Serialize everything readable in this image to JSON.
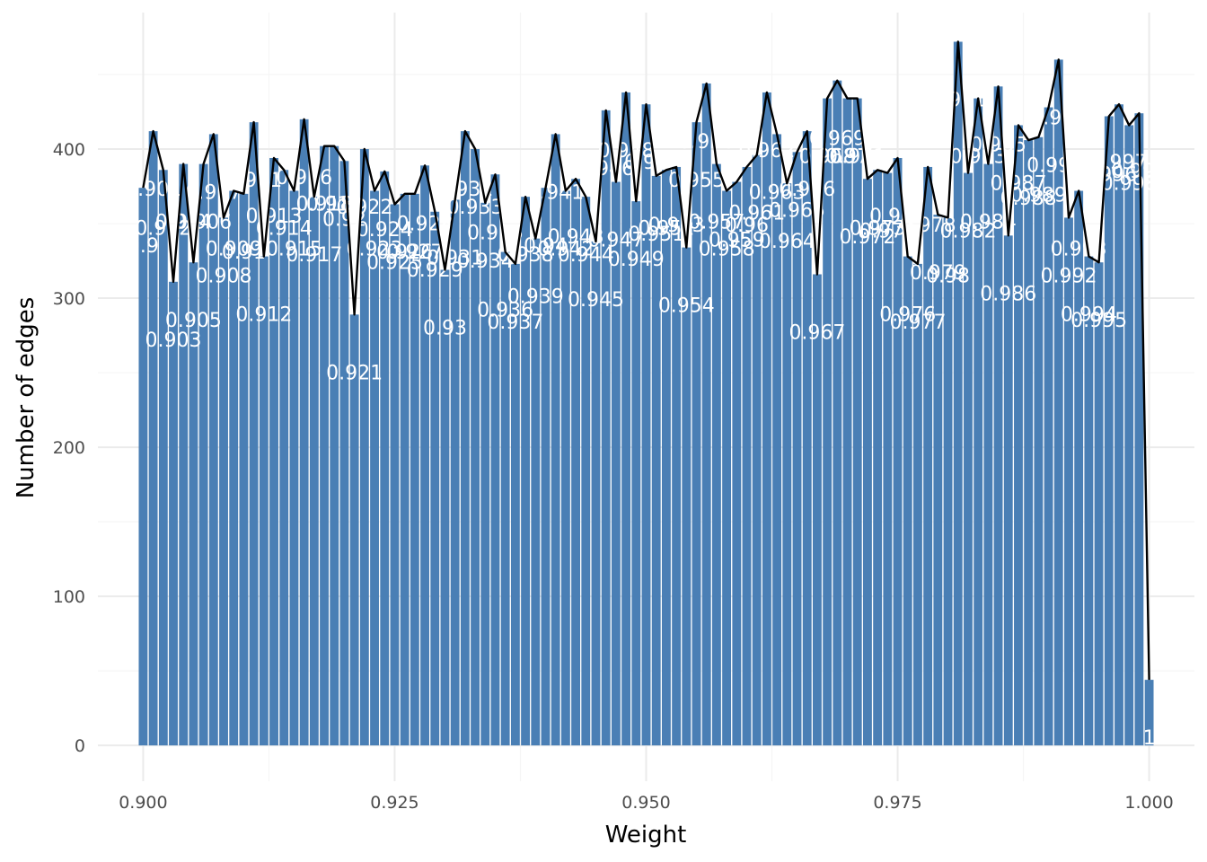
{
  "chart_data": {
    "type": "bar",
    "xlabel": "Weight",
    "ylabel": "Number of edges",
    "xlim": [
      0.8955,
      1.0045
    ],
    "ylim": [
      -24,
      500
    ],
    "x_ticks": [
      "0.900",
      "0.925",
      "0.950",
      "0.975",
      "1.000"
    ],
    "y_ticks": [
      "0",
      "100",
      "200",
      "300",
      "400"
    ],
    "grid": true,
    "legend": "none",
    "bar_color": "#4a7fb5",
    "line_color": "#000000",
    "label_color": "#ffffff",
    "series": [
      {
        "x": 0.9,
        "y": 374,
        "label": "0.9"
      },
      {
        "x": 0.901,
        "y": 412,
        "label": "0.901"
      },
      {
        "x": 0.902,
        "y": 386,
        "label": "0.902"
      },
      {
        "x": 0.903,
        "y": 311,
        "label": "0.903"
      },
      {
        "x": 0.904,
        "y": 390,
        "label": "0.904"
      },
      {
        "x": 0.905,
        "y": 324,
        "label": "0.905"
      },
      {
        "x": 0.906,
        "y": 390,
        "label": "0.906"
      },
      {
        "x": 0.907,
        "y": 410,
        "label": "0.907"
      },
      {
        "x": 0.908,
        "y": 354,
        "label": "0.908"
      },
      {
        "x": 0.909,
        "y": 372,
        "label": "0.909"
      },
      {
        "x": 0.91,
        "y": 370,
        "label": "0.91"
      },
      {
        "x": 0.911,
        "y": 418,
        "label": "0.911"
      },
      {
        "x": 0.912,
        "y": 328,
        "label": "0.912"
      },
      {
        "x": 0.913,
        "y": 394,
        "label": "0.913"
      },
      {
        "x": 0.914,
        "y": 386,
        "label": "0.914"
      },
      {
        "x": 0.915,
        "y": 372,
        "label": "0.915"
      },
      {
        "x": 0.916,
        "y": 420,
        "label": "0.916"
      },
      {
        "x": 0.917,
        "y": 368,
        "label": "0.917"
      },
      {
        "x": 0.918,
        "y": 402,
        "label": "0.918"
      },
      {
        "x": 0.919,
        "y": 402,
        "label": "0.919"
      },
      {
        "x": 0.92,
        "y": 392,
        "label": "0.92"
      },
      {
        "x": 0.921,
        "y": 289,
        "label": "0.921"
      },
      {
        "x": 0.922,
        "y": 400,
        "label": "0.922"
      },
      {
        "x": 0.923,
        "y": 372,
        "label": "0.923"
      },
      {
        "x": 0.924,
        "y": 385,
        "label": "0.924"
      },
      {
        "x": 0.925,
        "y": 363,
        "label": "0.925"
      },
      {
        "x": 0.926,
        "y": 370,
        "label": "0.926"
      },
      {
        "x": 0.927,
        "y": 370,
        "label": "0.927"
      },
      {
        "x": 0.928,
        "y": 389,
        "label": "0.928"
      },
      {
        "x": 0.929,
        "y": 358,
        "label": "0.929"
      },
      {
        "x": 0.93,
        "y": 319,
        "label": "0.93"
      },
      {
        "x": 0.931,
        "y": 366,
        "label": "0.931"
      },
      {
        "x": 0.932,
        "y": 412,
        "label": "0.932"
      },
      {
        "x": 0.933,
        "y": 400,
        "label": "0.933"
      },
      {
        "x": 0.934,
        "y": 364,
        "label": "0.934"
      },
      {
        "x": 0.935,
        "y": 383,
        "label": "0.935"
      },
      {
        "x": 0.936,
        "y": 331,
        "label": "0.936"
      },
      {
        "x": 0.937,
        "y": 323,
        "label": "0.937"
      },
      {
        "x": 0.938,
        "y": 368,
        "label": "0.938"
      },
      {
        "x": 0.939,
        "y": 340,
        "label": "0.939"
      },
      {
        "x": 0.94,
        "y": 374,
        "label": "0.94"
      },
      {
        "x": 0.941,
        "y": 410,
        "label": "0.941"
      },
      {
        "x": 0.942,
        "y": 372,
        "label": "0.942"
      },
      {
        "x": 0.943,
        "y": 380,
        "label": "0.943"
      },
      {
        "x": 0.944,
        "y": 368,
        "label": "0.944"
      },
      {
        "x": 0.945,
        "y": 338,
        "label": "0.945"
      },
      {
        "x": 0.946,
        "y": 426,
        "label": "0.946"
      },
      {
        "x": 0.947,
        "y": 378,
        "label": "0.947"
      },
      {
        "x": 0.948,
        "y": 438,
        "label": "0.948"
      },
      {
        "x": 0.949,
        "y": 365,
        "label": "0.949"
      },
      {
        "x": 0.95,
        "y": 430,
        "label": "0.95"
      },
      {
        "x": 0.951,
        "y": 382,
        "label": "0.951"
      },
      {
        "x": 0.952,
        "y": 386,
        "label": "0.952"
      },
      {
        "x": 0.953,
        "y": 388,
        "label": "0.953"
      },
      {
        "x": 0.954,
        "y": 334,
        "label": "0.954"
      },
      {
        "x": 0.955,
        "y": 418,
        "label": "0.955"
      },
      {
        "x": 0.956,
        "y": 444,
        "label": "0.956"
      },
      {
        "x": 0.957,
        "y": 390,
        "label": "0.957"
      },
      {
        "x": 0.958,
        "y": 372,
        "label": "0.958"
      },
      {
        "x": 0.959,
        "y": 378,
        "label": "0.959"
      },
      {
        "x": 0.96,
        "y": 388,
        "label": "0.96"
      },
      {
        "x": 0.961,
        "y": 396,
        "label": "0.961"
      },
      {
        "x": 0.962,
        "y": 438,
        "label": "0.962"
      },
      {
        "x": 0.963,
        "y": 410,
        "label": "0.963"
      },
      {
        "x": 0.964,
        "y": 377,
        "label": "0.964"
      },
      {
        "x": 0.965,
        "y": 398,
        "label": "0.965"
      },
      {
        "x": 0.966,
        "y": 412,
        "label": "0.966"
      },
      {
        "x": 0.967,
        "y": 316,
        "label": "0.967"
      },
      {
        "x": 0.968,
        "y": 434,
        "label": "0.968"
      },
      {
        "x": 0.969,
        "y": 446,
        "label": "0.969"
      },
      {
        "x": 0.97,
        "y": 434,
        "label": "0.97"
      },
      {
        "x": 0.971,
        "y": 434,
        "label": "0.971"
      },
      {
        "x": 0.972,
        "y": 380,
        "label": "0.972"
      },
      {
        "x": 0.973,
        "y": 386,
        "label": "0.973"
      },
      {
        "x": 0.974,
        "y": 384,
        "label": "0.974"
      },
      {
        "x": 0.975,
        "y": 394,
        "label": "0.975"
      },
      {
        "x": 0.976,
        "y": 328,
        "label": "0.976"
      },
      {
        "x": 0.977,
        "y": 323,
        "label": "0.977"
      },
      {
        "x": 0.978,
        "y": 388,
        "label": "0.978"
      },
      {
        "x": 0.979,
        "y": 356,
        "label": "0.979"
      },
      {
        "x": 0.98,
        "y": 354,
        "label": "0.98"
      },
      {
        "x": 0.981,
        "y": 472,
        "label": "0.981"
      },
      {
        "x": 0.982,
        "y": 384,
        "label": "0.982"
      },
      {
        "x": 0.983,
        "y": 434,
        "label": "0.983"
      },
      {
        "x": 0.984,
        "y": 390,
        "label": "0.984"
      },
      {
        "x": 0.985,
        "y": 442,
        "label": "0.985"
      },
      {
        "x": 0.986,
        "y": 342,
        "label": "0.986"
      },
      {
        "x": 0.987,
        "y": 416,
        "label": "0.987"
      },
      {
        "x": 0.988,
        "y": 406,
        "label": "0.988"
      },
      {
        "x": 0.989,
        "y": 408,
        "label": "0.989"
      },
      {
        "x": 0.99,
        "y": 428,
        "label": "0.99"
      },
      {
        "x": 0.991,
        "y": 460,
        "label": "0.991"
      },
      {
        "x": 0.992,
        "y": 354,
        "label": "0.992"
      },
      {
        "x": 0.993,
        "y": 372,
        "label": "0.993"
      },
      {
        "x": 0.994,
        "y": 328,
        "label": "0.994"
      },
      {
        "x": 0.995,
        "y": 324,
        "label": "0.995"
      },
      {
        "x": 0.996,
        "y": 422,
        "label": "0.996"
      },
      {
        "x": 0.997,
        "y": 430,
        "label": "0.997"
      },
      {
        "x": 0.998,
        "y": 416,
        "label": "0.998"
      },
      {
        "x": 0.999,
        "y": 424,
        "label": "0.999"
      },
      {
        "x": 1.0,
        "y": 44,
        "label": "1"
      }
    ]
  }
}
